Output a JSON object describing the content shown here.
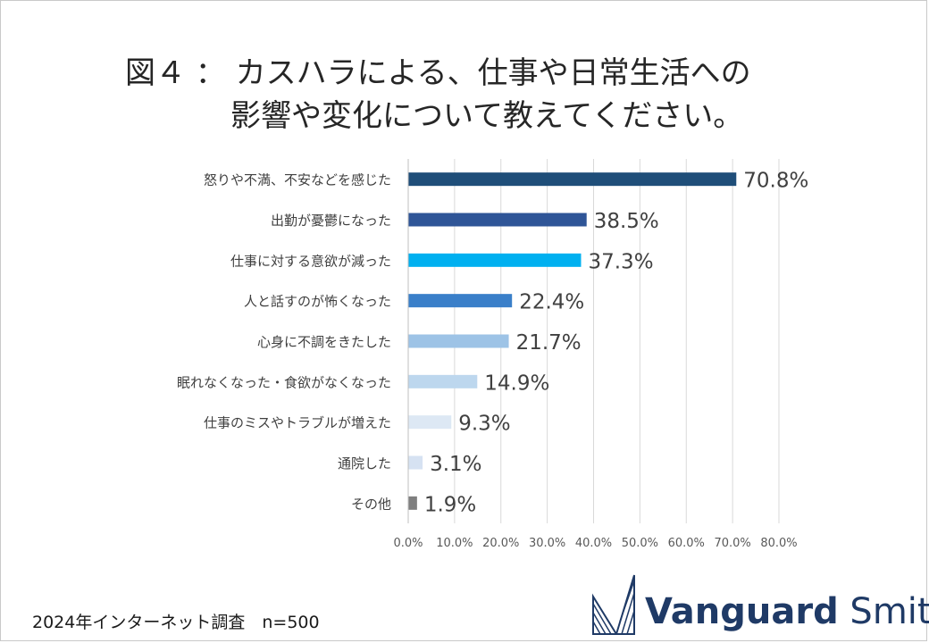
{
  "title": {
    "line1": "図４ ： カスハラによる、仕事や日常生活への",
    "line2": "影響や変化について教えてください。"
  },
  "chart_data": {
    "type": "bar",
    "orientation": "horizontal",
    "categories": [
      "怒りや不満、不安などを感じた",
      "出勤が憂鬱になった",
      "仕事に対する意欲が減った",
      "人と話すのが怖くなった",
      "心身に不調をきたした",
      "眠れなくなった・食欲がなくなった",
      "仕事のミスやトラブルが増えた",
      "通院した",
      "その他"
    ],
    "values": [
      70.8,
      38.5,
      37.3,
      22.4,
      21.7,
      14.9,
      9.3,
      3.1,
      1.9
    ],
    "value_labels": [
      "70.8%",
      "38.5%",
      "37.3%",
      "22.4%",
      "21.7%",
      "14.9%",
      "9.3%",
      "3.1%",
      "1.9%"
    ],
    "colors": [
      "#1f4e79",
      "#2f5597",
      "#00b0f0",
      "#3a7fc9",
      "#9dc3e6",
      "#bdd7ee",
      "#dde8f4",
      "#d6e2f2",
      "#7f7f7f"
    ],
    "xlim": [
      0,
      80
    ],
    "xticks": [
      "0.0%",
      "10.0%",
      "20.0%",
      "30.0%",
      "40.0%",
      "50.0%",
      "60.0%",
      "70.0%",
      "80.0%"
    ],
    "grid": true
  },
  "footer": {
    "survey": "2024年インターネット調査　n=500"
  },
  "logo": {
    "bold": "Vanguard",
    "light": "Smith",
    "color": "#1f3a66"
  }
}
